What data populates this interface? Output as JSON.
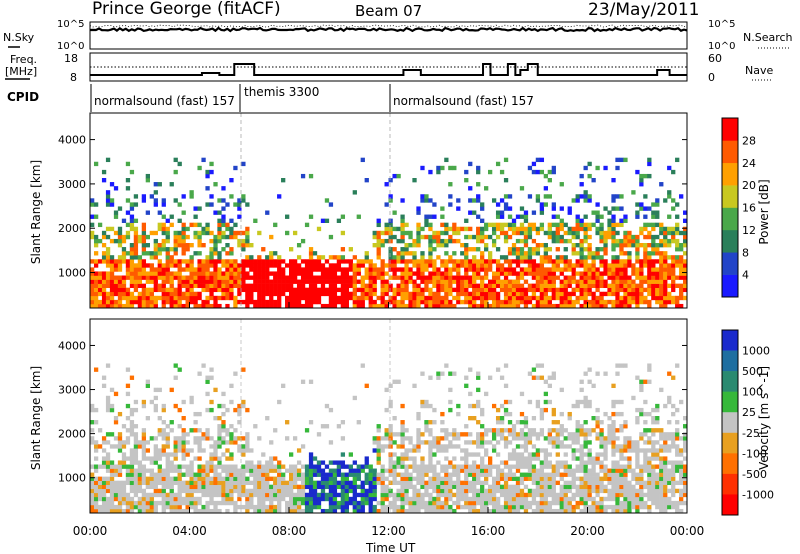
{
  "header": {
    "station": "Prince George (fitACF)",
    "beam": "Beam 07",
    "date": "23/May/2011"
  },
  "top_strips": {
    "nsky": {
      "label": "N.Sky",
      "left_ticks": [
        "10^5",
        "10^0"
      ],
      "right_label": "N.Search",
      "right_ticks": [
        "10^5",
        "10^0"
      ]
    },
    "freq": {
      "label_line1": "Freq.",
      "label_line2": "[MHz]",
      "left_ticks": [
        "18",
        "8"
      ],
      "right_label": "Nave",
      "right_ticks": [
        "60",
        "0"
      ]
    },
    "cpid": {
      "label": "CPID",
      "segments": [
        {
          "name": "normalsound (fast) 157",
          "start_h": 0,
          "end_h": 6
        },
        {
          "name": "themis 3300",
          "start_h": 6,
          "end_h": 12
        },
        {
          "name": "normalsound (fast) 157",
          "start_h": 12,
          "end_h": 24
        }
      ]
    }
  },
  "panels": {
    "power": {
      "ylabel": "Slant Range [km]",
      "yticks": [
        "1000",
        "2000",
        "3000",
        "4000"
      ]
    },
    "velocity": {
      "ylabel": "Slant Range [km]",
      "yticks": [
        "1000",
        "2000",
        "3000",
        "4000"
      ]
    }
  },
  "xaxis": {
    "label": "Time UT",
    "ticks": [
      "00:00",
      "04:00",
      "08:00",
      "12:00",
      "16:00",
      "20:00",
      "00:00"
    ]
  },
  "colorbars": {
    "power": {
      "label": "Power [dB]",
      "ticks": [
        "4",
        "8",
        "12",
        "16",
        "20",
        "24",
        "28"
      ],
      "colors": [
        "#1a1aff",
        "#2244c8",
        "#2a7f5a",
        "#4aa84a",
        "#c8c820",
        "#ffa000",
        "#ff5a00",
        "#ff0000"
      ]
    },
    "velocity": {
      "label": "Velocity [m s^-1]",
      "ticks": [
        "1000",
        "500",
        "100",
        "25",
        "-25",
        "-100",
        "-500",
        "-1000"
      ],
      "colors": [
        "#1a2acc",
        "#1e6ea0",
        "#2a8a70",
        "#36b83a",
        "#c4c4c4",
        "#e8a020",
        "#ff7000",
        "#ff3000",
        "#ff0000"
      ]
    }
  },
  "chart_data": [
    {
      "type": "heatmap",
      "title": "Power",
      "xlabel": "Time UT",
      "ylabel": "Slant Range [km]",
      "xlim_hours": [
        0,
        24
      ],
      "ylim_km": [
        200,
        4600
      ],
      "colorbar": "Power [dB]",
      "clim": [
        0,
        30
      ]
    },
    {
      "type": "heatmap",
      "title": "Velocity",
      "xlabel": "Time UT",
      "ylabel": "Slant Range [km]",
      "xlim_hours": [
        0,
        24
      ],
      "ylim_km": [
        200,
        4600
      ],
      "colorbar": "Velocity [m s^-1]",
      "clim": [
        -1000,
        1000
      ]
    }
  ]
}
